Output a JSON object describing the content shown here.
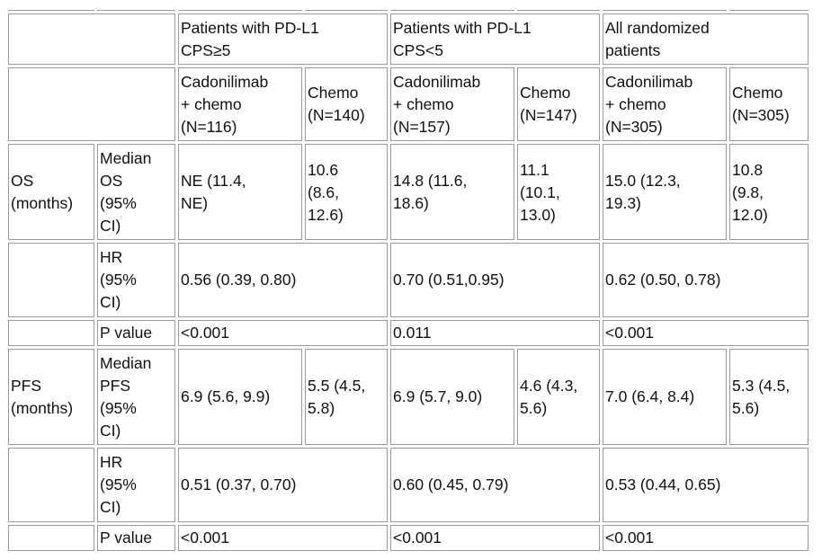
{
  "groups": {
    "cps_ge5": "Patients with PD-L1\nCPS≥5",
    "cps_lt5": "Patients with PD-L1\nCPS<5",
    "all": "All randomized\npatients"
  },
  "arms": {
    "cado_ge5": "Cadonilimab\n+ chemo\n(N=116)",
    "chemo_ge5": "Chemo\n(N=140)",
    "cado_lt5": "Cadonilimab\n+ chemo\n(N=157)",
    "chemo_lt5": "Chemo\n(N=147)",
    "cado_all": "Cadonilimab\n+ chemo\n(N=305)",
    "chemo_all": "Chemo\n(N=305)"
  },
  "os": {
    "label": "OS\n(months)",
    "median_label": "Median\nOS\n(95%\nCI)",
    "median": [
      "NE (11.4,\nNE)",
      "10.6\n(8.6,\n12.6)",
      "14.8 (11.6,\n18.6)",
      "11.1\n(10.1,\n13.0)",
      "15.0 (12.3,\n19.3)",
      "10.8\n(9.8,\n12.0)"
    ],
    "hr_label": "HR\n(95%\nCI)",
    "hr": [
      "0.56 (0.39, 0.80)",
      "0.70 (0.51,0.95)",
      "0.62 (0.50, 0.78)"
    ],
    "p_label": "P value",
    "p": [
      "<0.001",
      "0.011",
      "<0.001"
    ]
  },
  "pfs": {
    "label": "PFS\n(months)",
    "median_label": "Median\nPFS\n(95%\nCI)",
    "median": [
      "6.9 (5.6, 9.9)",
      "5.5 (4.5,\n5.8)",
      "6.9 (5.7, 9.0)",
      "4.6 (4.3,\n5.6)",
      "7.0 (6.4, 8.4)",
      "5.3 (4.5,\n5.6)"
    ],
    "hr_label": "HR\n(95%\nCI)",
    "hr": [
      "0.51 (0.37, 0.70)",
      "0.60 (0.45, 0.79)",
      "0.53 (0.44, 0.65)"
    ],
    "p_label": "P value",
    "p": [
      "<0.001",
      "<0.001",
      "<0.001"
    ]
  }
}
